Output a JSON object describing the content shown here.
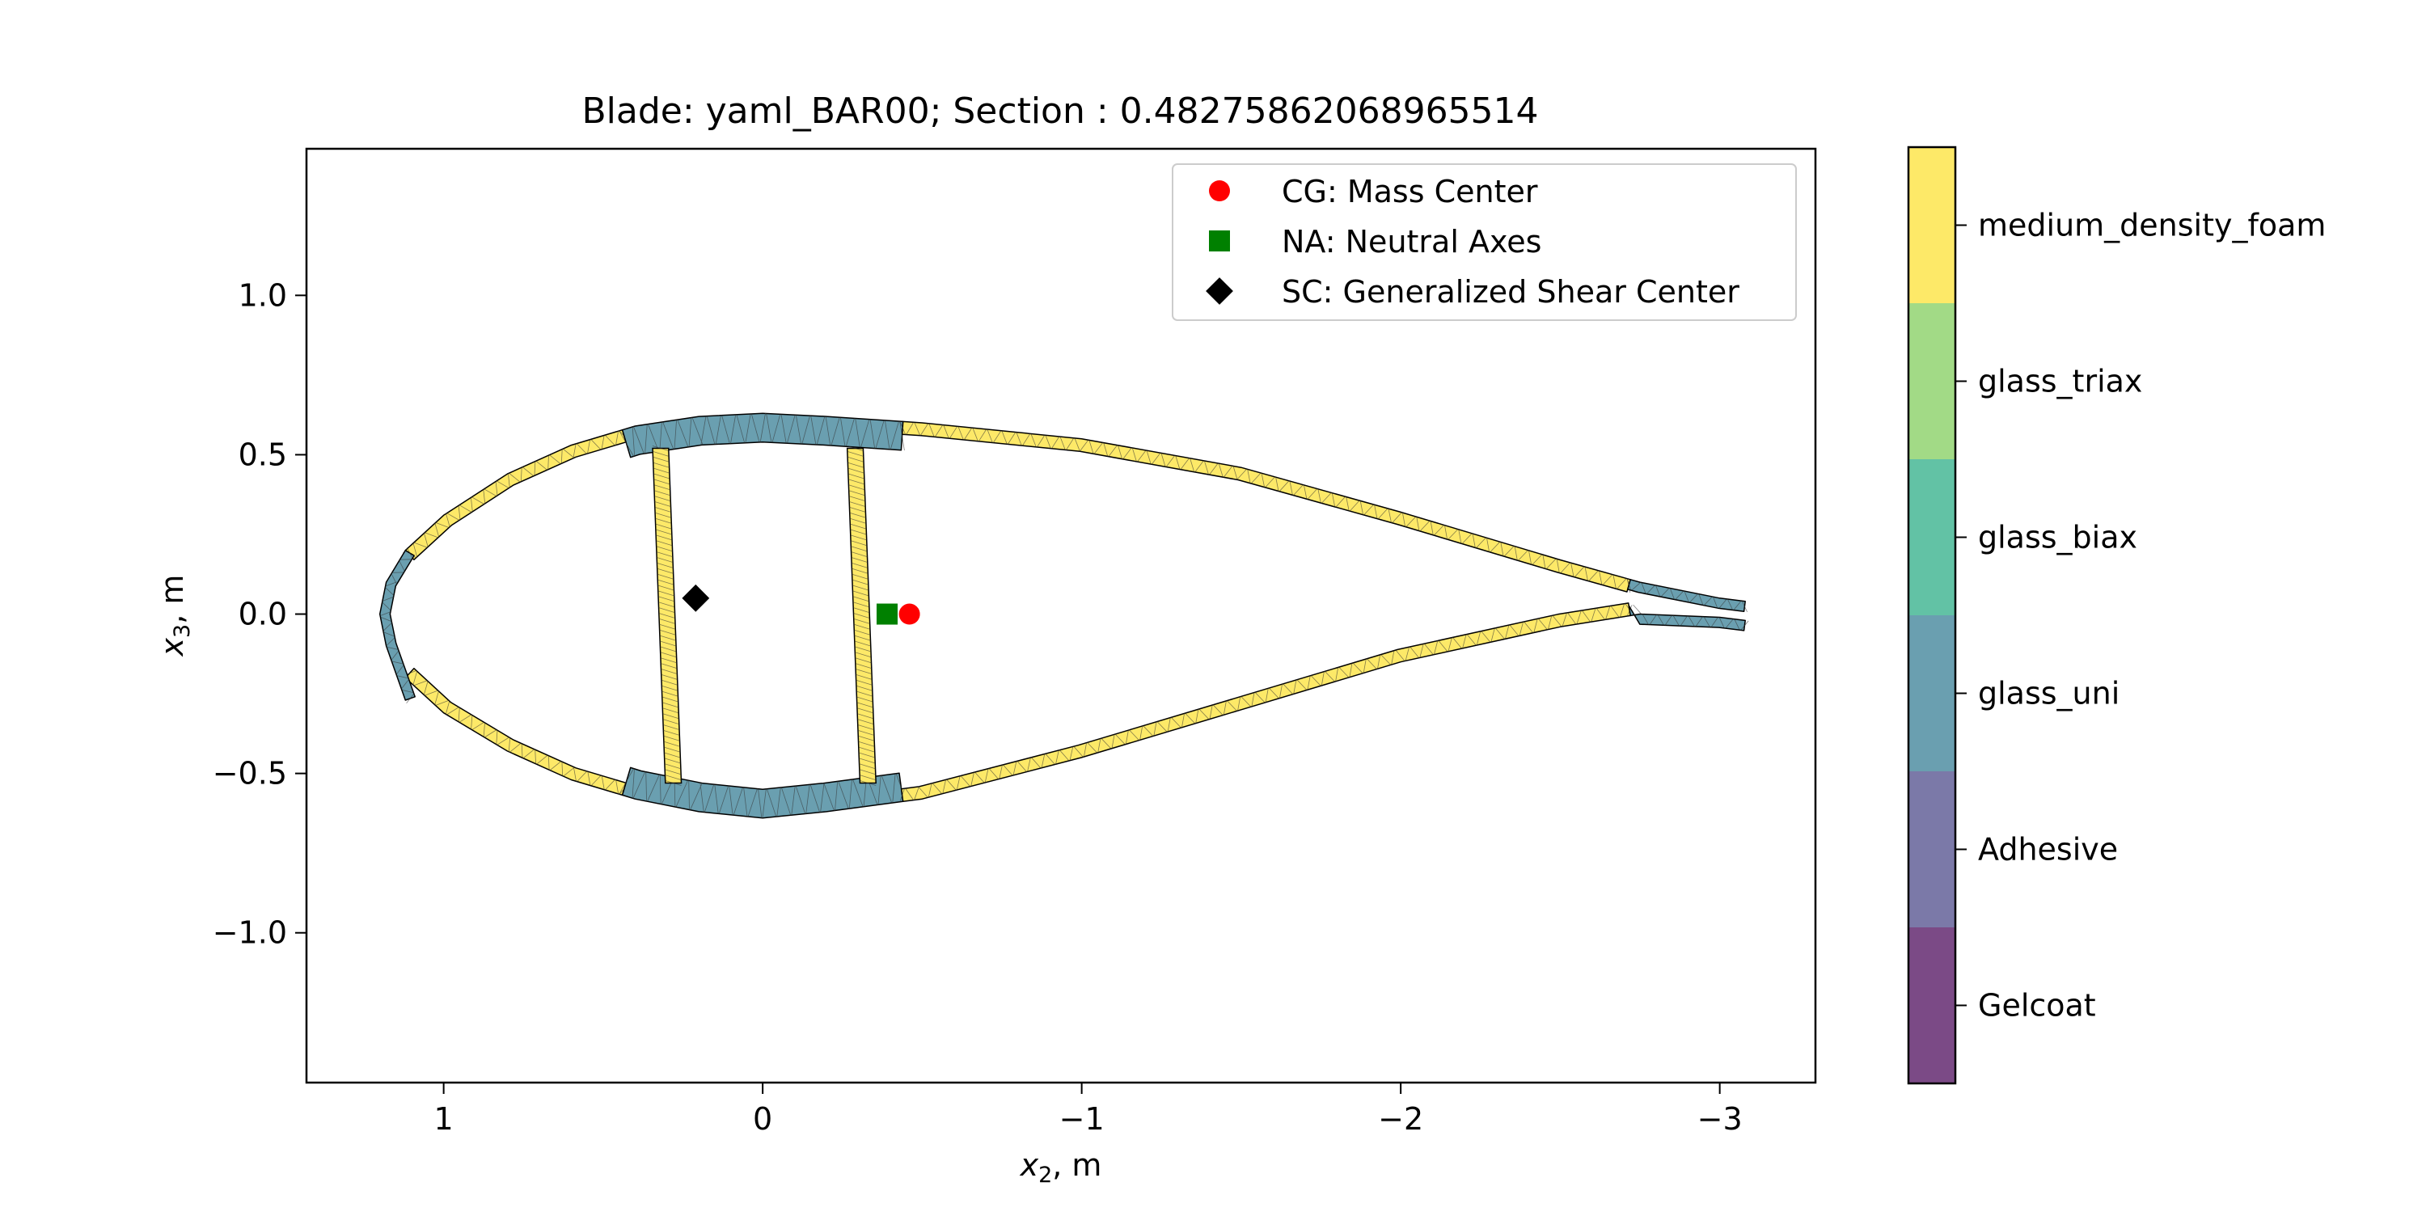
{
  "chart_data": {
    "type": "scatter",
    "title": "Blade: yaml_BAR00; Section : 0.48275862068965514",
    "xlabel": {
      "base": "x",
      "sub": "2",
      "unit": ", m"
    },
    "ylabel": {
      "base": "x",
      "sub": "3",
      "unit": ", m"
    },
    "xlim": [
      1.43,
      -3.3
    ],
    "ylim": [
      -1.47,
      1.46
    ],
    "x_axis_inverted": true,
    "xticks": [
      {
        "value": 1,
        "label": "1"
      },
      {
        "value": 0,
        "label": "0"
      },
      {
        "value": -1,
        "label": "−1"
      },
      {
        "value": -2,
        "label": "−2"
      },
      {
        "value": -3,
        "label": "−3"
      }
    ],
    "yticks": [
      {
        "value": 1.0,
        "label": "1.0"
      },
      {
        "value": 0.5,
        "label": "0.5"
      },
      {
        "value": 0.0,
        "label": "0.0"
      },
      {
        "value": -0.5,
        "label": "−0.5"
      },
      {
        "value": -1.0,
        "label": "−1.0"
      }
    ],
    "grid": false,
    "legend_position": "top-right",
    "series": [
      {
        "name": "CG: Mass Center",
        "marker": "circle",
        "color": "#ff0000",
        "x": -0.46,
        "y": 0.0
      },
      {
        "name": "NA: Neutral Axes",
        "marker": "square",
        "color": "#008000",
        "x": -0.39,
        "y": 0.0
      },
      {
        "name": "SC: Generalized Shear Center",
        "marker": "diamond",
        "color": "#000000",
        "x": 0.21,
        "y": 0.05
      }
    ],
    "colorbar": {
      "position": "right",
      "categories": [
        {
          "label": "medium_density_foam",
          "color": "#fde968"
        },
        {
          "label": "glass_triax",
          "color": "#a2da86"
        },
        {
          "label": "glass_biax",
          "color": "#62c2a5"
        },
        {
          "label": "glass_uni",
          "color": "#6a9fb0"
        },
        {
          "label": "Adhesive",
          "color": "#7b79a8"
        },
        {
          "label": "Gelcoat",
          "color": "#7b4a86"
        }
      ]
    },
    "section_outline": {
      "upper": [
        [
          1.2,
          0.0
        ],
        [
          1.18,
          0.1
        ],
        [
          1.12,
          0.2
        ],
        [
          1.0,
          0.31
        ],
        [
          0.8,
          0.44
        ],
        [
          0.6,
          0.53
        ],
        [
          0.4,
          0.59
        ],
        [
          0.2,
          0.62
        ],
        [
          0.0,
          0.63
        ],
        [
          -0.2,
          0.62
        ],
        [
          -0.5,
          0.6
        ],
        [
          -1.0,
          0.55
        ],
        [
          -1.5,
          0.46
        ],
        [
          -2.0,
          0.32
        ],
        [
          -2.5,
          0.17
        ],
        [
          -2.75,
          0.1
        ],
        [
          -3.0,
          0.05
        ],
        [
          -3.08,
          0.04
        ]
      ],
      "lower": [
        [
          1.2,
          0.0
        ],
        [
          1.18,
          -0.1
        ],
        [
          1.12,
          -0.2
        ],
        [
          1.0,
          -0.31
        ],
        [
          0.8,
          -0.43
        ],
        [
          0.6,
          -0.52
        ],
        [
          0.4,
          -0.58
        ],
        [
          0.2,
          -0.62
        ],
        [
          0.0,
          -0.64
        ],
        [
          -0.2,
          -0.62
        ],
        [
          -0.5,
          -0.58
        ],
        [
          -1.0,
          -0.45
        ],
        [
          -1.5,
          -0.3
        ],
        [
          -2.0,
          -0.15
        ],
        [
          -2.5,
          -0.04
        ],
        [
          -2.75,
          0.0
        ],
        [
          -3.0,
          -0.01
        ],
        [
          -3.08,
          -0.02
        ]
      ],
      "thickness": 0.04,
      "spar_caps": {
        "material": "glass_uni",
        "x_range": [
          0.44,
          -0.44
        ],
        "thickness": 0.09
      },
      "webs": [
        {
          "material": "medium_density_foam",
          "x_top": 0.32,
          "x_bottom": 0.28,
          "y_top": 0.52,
          "y_bottom": -0.53,
          "thickness": 0.05
        },
        {
          "material": "medium_density_foam",
          "x_top": -0.29,
          "x_bottom": -0.33,
          "y_top": 0.52,
          "y_bottom": -0.53,
          "thickness": 0.05
        }
      ],
      "le_reinforcement": {
        "material": "glass_uni",
        "y_range": [
          -0.27,
          0.2
        ]
      },
      "te_reinforcement": {
        "material": "glass_uni",
        "x_range": [
          -2.72,
          -3.08
        ]
      },
      "shell_material": "medium_density_foam"
    }
  }
}
